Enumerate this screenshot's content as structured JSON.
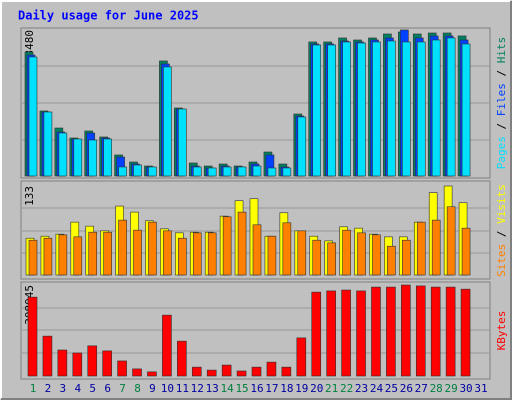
{
  "title": "Daily usage for June 2025",
  "legend_separator": " / ",
  "categories": [
    "1",
    "2",
    "3",
    "4",
    "5",
    "6",
    "7",
    "8",
    "9",
    "10",
    "11",
    "12",
    "13",
    "14",
    "15",
    "16",
    "17",
    "18",
    "19",
    "20",
    "21",
    "22",
    "23",
    "24",
    "25",
    "26",
    "27",
    "28",
    "29",
    "30",
    "31"
  ],
  "category_colors": [
    "#008040",
    "#0000a0",
    "#0000a0",
    "#0000a0",
    "#0000a0",
    "#0000a0",
    "#008040",
    "#008040",
    "#0000a0",
    "#0000a0",
    "#0000a0",
    "#0000a0",
    "#0000a0",
    "#008040",
    "#008040",
    "#0000a0",
    "#0000a0",
    "#0000a0",
    "#0000a0",
    "#0000a0",
    "#008040",
    "#008040",
    "#0000a0",
    "#0000a0",
    "#0000a0",
    "#0000a0",
    "#0000a0",
    "#008040",
    "#008040",
    "#0000a0",
    "#0000a0"
  ],
  "chart_data": [
    {
      "type": "bar",
      "ylim": [
        0,
        3480
      ],
      "yticks": [
        3480
      ],
      "series": [
        {
          "name": "Hits",
          "color": "#008060",
          "values": [
            2956,
            1550,
            1144,
            906,
            1073,
            930,
            501,
            334,
            238,
            2742,
            1621,
            310,
            238,
            286,
            238,
            334,
            572,
            286,
            1478,
            3195,
            3195,
            3290,
            3242,
            3290,
            3385,
            3433,
            3385,
            3409,
            3409,
            3338,
            null
          ]
        },
        {
          "name": "Files",
          "color": "#0040ff",
          "values": [
            2884,
            1526,
            1049,
            882,
            1025,
            906,
            453,
            286,
            215,
            2670,
            1597,
            238,
            191,
            238,
            215,
            286,
            501,
            215,
            1430,
            3147,
            3147,
            3218,
            3195,
            3242,
            3290,
            3480,
            3290,
            3338,
            3338,
            3242,
            null
          ]
        },
        {
          "name": "Pages",
          "color": "#00e0ff",
          "values": [
            2837,
            1526,
            1025,
            882,
            858,
            882,
            215,
            262,
            215,
            2599,
            1597,
            215,
            191,
            215,
            215,
            238,
            191,
            191,
            1407,
            3123,
            3123,
            3195,
            3171,
            3195,
            3218,
            3195,
            3195,
            3242,
            3290,
            3147,
            null
          ]
        }
      ]
    },
    {
      "type": "bar",
      "ylim": [
        0,
        133
      ],
      "yticks": [
        133
      ],
      "series": [
        {
          "name": "Visits",
          "color": "#ffff00",
          "values": [
            55,
            58,
            61,
            79,
            73,
            66,
            103,
            94,
            81,
            69,
            63,
            64,
            64,
            88,
            111,
            114,
            58,
            93,
            66,
            58,
            51,
            72,
            70,
            61,
            57,
            57,
            79,
            123,
            133,
            108,
            null
          ]
        },
        {
          "name": "Sites",
          "color": "#ff8000",
          "values": [
            52,
            55,
            60,
            57,
            64,
            64,
            82,
            67,
            79,
            66,
            55,
            63,
            63,
            87,
            94,
            75,
            58,
            78,
            66,
            52,
            48,
            67,
            63,
            60,
            43,
            52,
            79,
            82,
            102,
            70,
            null
          ]
        }
      ]
    },
    {
      "type": "bar",
      "ylim": [
        0,
        308045
      ],
      "yticks": [
        308045
      ],
      "series": [
        {
          "name": "KBytes",
          "color": "#ff0000",
          "values": [
            267000,
            135000,
            88000,
            78000,
            102000,
            85000,
            51000,
            24000,
            14000,
            206000,
            118000,
            30000,
            20000,
            37000,
            17000,
            30000,
            47000,
            30000,
            129000,
            284000,
            288000,
            291000,
            288000,
            301000,
            301000,
            308045,
            305000,
            301000,
            301000,
            294000,
            null
          ]
        }
      ]
    }
  ]
}
